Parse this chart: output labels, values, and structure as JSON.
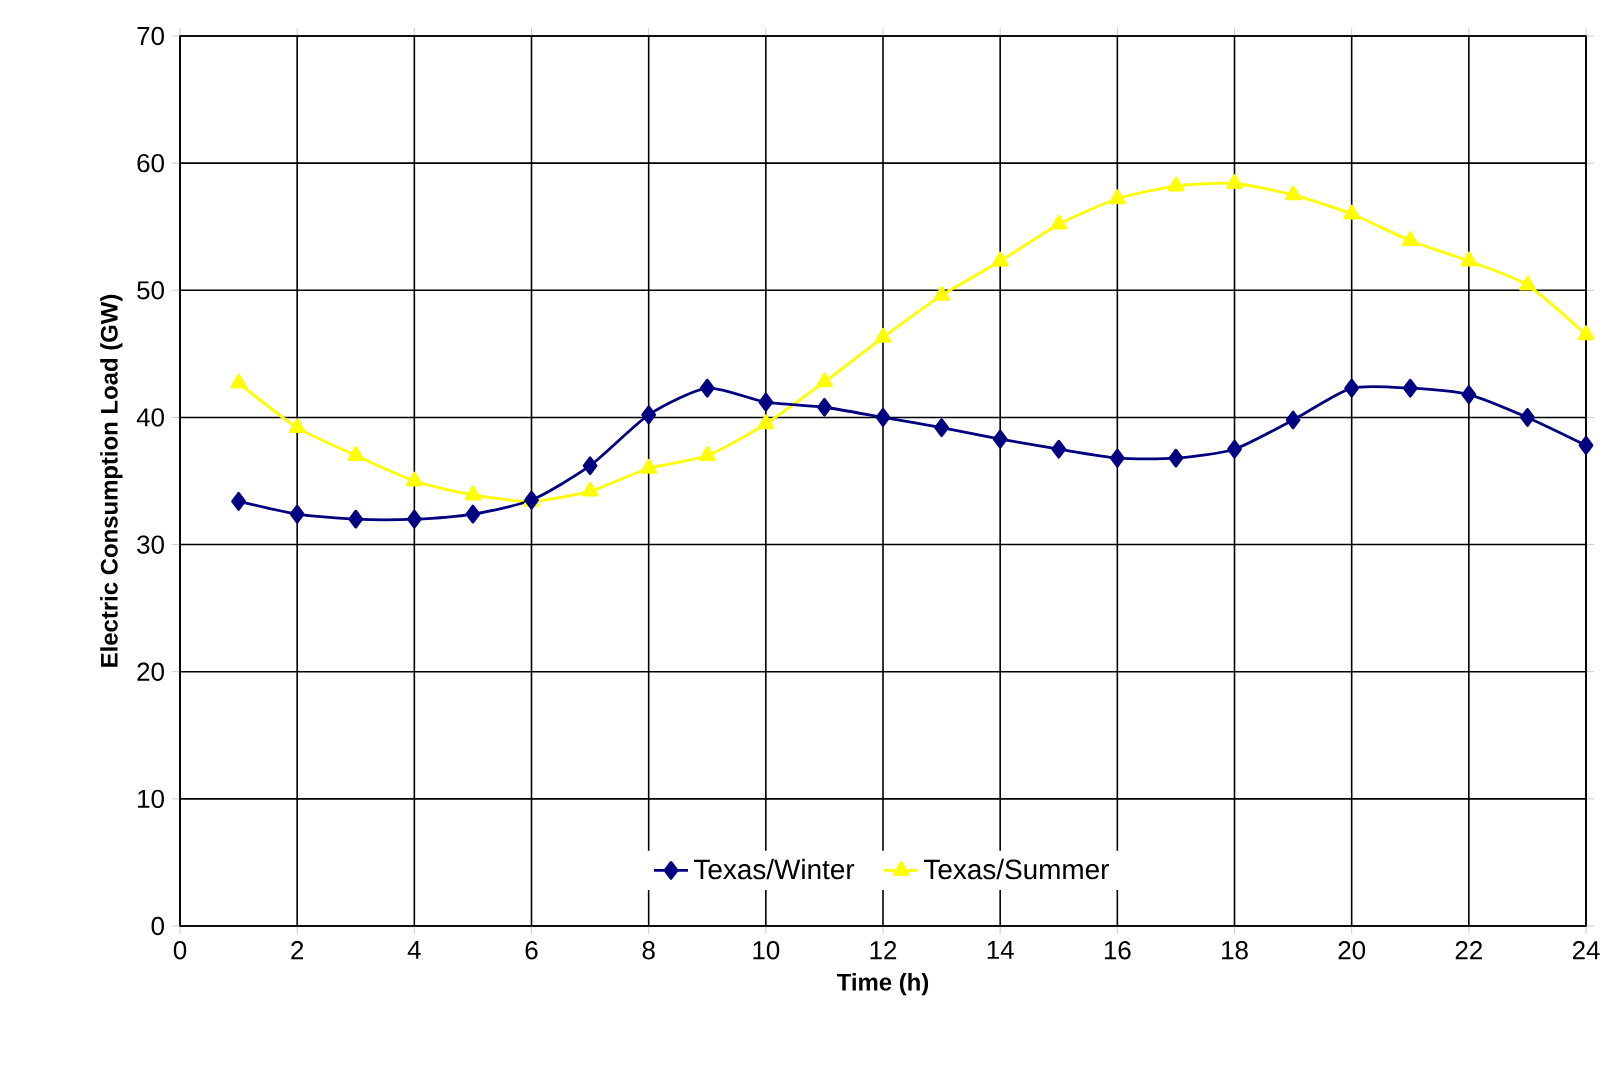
{
  "chart_data": {
    "type": "line",
    "xlabel": "Time (h)",
    "ylabel": "Electric Consumption Load (GW)",
    "x": [
      1,
      2,
      3,
      4,
      5,
      6,
      7,
      8,
      9,
      10,
      11,
      12,
      13,
      14,
      15,
      16,
      17,
      18,
      19,
      20,
      21,
      22,
      23,
      24
    ],
    "series": [
      {
        "name": "Texas/Winter",
        "color": "#000080",
        "marker": "diamond",
        "values": [
          33.4,
          32.4,
          32.0,
          32.0,
          32.4,
          33.5,
          36.2,
          40.2,
          42.3,
          41.2,
          40.8,
          40.0,
          39.2,
          38.3,
          37.5,
          36.8,
          36.8,
          37.5,
          39.8,
          42.3,
          42.3,
          41.8,
          40.0,
          37.8
        ]
      },
      {
        "name": "Texas/Summer",
        "color": "#ffff00",
        "marker": "triangle",
        "values": [
          42.7,
          39.2,
          37.0,
          35.0,
          33.9,
          33.4,
          34.2,
          36.0,
          37.0,
          39.5,
          42.8,
          46.3,
          49.6,
          52.3,
          55.2,
          57.2,
          58.2,
          58.4,
          57.5,
          56.0,
          53.9,
          52.3,
          50.4,
          46.5
        ]
      }
    ],
    "xlim": [
      0,
      24
    ],
    "xticks": [
      0,
      2,
      4,
      6,
      8,
      10,
      12,
      14,
      16,
      18,
      20,
      22,
      24
    ],
    "ylim": [
      0,
      70
    ],
    "yticks": [
      0,
      10,
      20,
      30,
      40,
      50,
      60,
      70
    ],
    "grid": true,
    "legend": "bottom",
    "line_style": "solid"
  }
}
